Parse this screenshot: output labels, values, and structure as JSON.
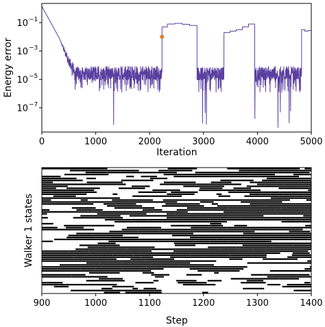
{
  "colors": {
    "energy_line": "#5b3fa0",
    "marker": "#e8782a",
    "axis": "#000000",
    "state_fill": "#000000",
    "background": "#ffffff"
  },
  "chart_data": [
    {
      "type": "line",
      "xlabel": "Iteration",
      "ylabel": "Energy error",
      "xlim": [
        0,
        5000
      ],
      "ylim_log10": [
        -8.7,
        0.35
      ],
      "yscale": "log",
      "x_ticks": [
        0,
        1000,
        2000,
        3000,
        4000,
        5000
      ],
      "x_tick_labels": [
        "0",
        "1000",
        "2000",
        "3000",
        "4000",
        "5000"
      ],
      "y_ticks_log10": [
        -1,
        -3,
        -5,
        -7
      ],
      "y_tick_labels": [
        {
          "base": "10",
          "exp": "−1"
        },
        {
          "base": "10",
          "exp": "−3"
        },
        {
          "base": "10",
          "exp": "−5"
        },
        {
          "base": "10",
          "exp": "−7"
        }
      ],
      "grid": false,
      "series": [
        {
          "color": "#5b3fa0",
          "segments": [
            {
              "kind": "decay",
              "x": [
                0,
                600
              ],
              "log10_y": [
                0.15,
                -4.0
              ]
            },
            {
              "kind": "noise",
              "x": [
                600,
                2230
              ],
              "log10_center": -4.6,
              "log10_spread": [
                -5.9,
                -4.1
              ]
            },
            {
              "kind": "step",
              "x": [
                2230,
                2330
              ],
              "log10_y": -1.3
            },
            {
              "kind": "plateau",
              "x": [
                2330,
                2880
              ],
              "log10_levels": [
                -1.1,
                -1.05,
                -1.12,
                -1.2
              ]
            },
            {
              "kind": "noise",
              "x": [
                2880,
                3380
              ],
              "log10_center": -4.6,
              "log10_spread": [
                -5.9,
                -4.2
              ]
            },
            {
              "kind": "plateau",
              "x": [
                3380,
                3950
              ],
              "log10_levels": [
                -1.7,
                -1.6,
                -1.5,
                -1.3,
                -1.1
              ]
            },
            {
              "kind": "noise",
              "x": [
                3950,
                4820
              ],
              "log10_center": -4.6,
              "log10_spread": [
                -5.9,
                -4.1
              ]
            },
            {
              "kind": "plateau",
              "x": [
                4820,
                5000
              ],
              "log10_levels": [
                -1.5,
                -1.6,
                -1.55
              ]
            }
          ]
        }
      ],
      "marker_point": {
        "x": 2230,
        "log10_y": -2.0
      }
    },
    {
      "type": "heatmap",
      "xlabel": "Step",
      "ylabel": "Walker 1 states",
      "xlim": [
        900,
        1400
      ],
      "x_ticks": [
        900,
        1000,
        1100,
        1200,
        1300,
        1400
      ],
      "x_tick_labels": [
        "900",
        "1000",
        "1100",
        "1200",
        "1300",
        "1400"
      ],
      "rows": 64,
      "values": "binary occupancy (black = 1, white = 0)",
      "pattern": "dense block band that drifts upward with step in the lower-middle rows; sparser horizontal streaks elsewhere"
    }
  ]
}
